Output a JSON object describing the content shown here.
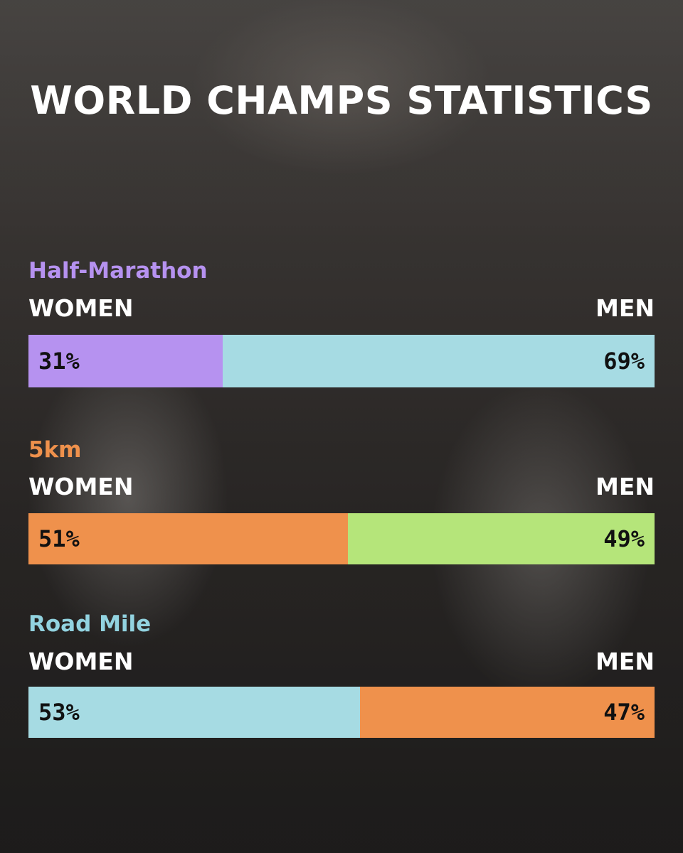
{
  "title": "WORLD CHAMPS STATISTICS",
  "chart_data": [
    {
      "type": "bar",
      "title": "Half-Marathon",
      "categories": [
        "WOMEN",
        "MEN"
      ],
      "values": [
        31,
        69
      ],
      "value_labels": [
        "31%",
        "69%"
      ],
      "colors": [
        "#b692f0",
        "#a6dbe3"
      ],
      "title_color": "#b692f0"
    },
    {
      "type": "bar",
      "title": "5km",
      "categories": [
        "WOMEN",
        "MEN"
      ],
      "values": [
        51,
        49
      ],
      "value_labels": [
        "51%",
        "49%"
      ],
      "colors": [
        "#ef914c",
        "#b5e57a"
      ],
      "title_color": "#ef914c"
    },
    {
      "type": "bar",
      "title": "Road Mile",
      "categories": [
        "WOMEN",
        "MEN"
      ],
      "values": [
        53,
        47
      ],
      "value_labels": [
        "53%",
        "47%"
      ],
      "colors": [
        "#a6dbe3",
        "#ef914c"
      ],
      "title_color": "#92d3e0"
    }
  ]
}
